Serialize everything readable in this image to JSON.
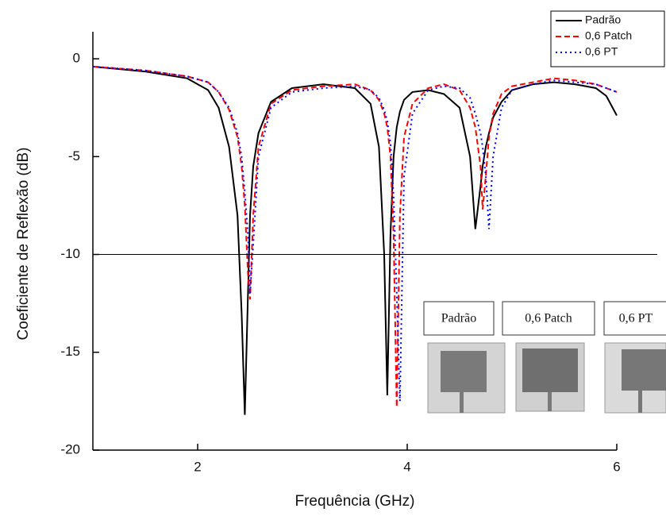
{
  "chart_data": {
    "type": "line",
    "x_label": "Frequência (GHz)",
    "y_label": "Coeficiente de Reflexão (dB)",
    "xlim": [
      1,
      6
    ],
    "ylim": [
      -20,
      1
    ],
    "xticks": [
      2,
      4,
      6
    ],
    "yticks": [
      0,
      -5,
      -10,
      -15,
      -20
    ],
    "reference_line": -10,
    "legend_position": "upper right",
    "x": [
      1.0,
      1.5,
      1.9,
      2.1,
      2.2,
      2.3,
      2.38,
      2.42,
      2.45,
      2.48,
      2.5,
      2.53,
      2.58,
      2.7,
      2.9,
      3.2,
      3.5,
      3.65,
      3.73,
      3.78,
      3.81,
      3.84,
      3.87,
      3.9,
      3.93,
      3.97,
      4.05,
      4.2,
      4.35,
      4.5,
      4.6,
      4.65,
      4.7,
      4.72,
      4.75,
      4.78,
      4.82,
      4.9,
      5.0,
      5.2,
      5.4,
      5.6,
      5.8,
      5.9,
      6.0
    ],
    "series": [
      {
        "name": "Padrão",
        "color": "#000000",
        "style": "solid",
        "values": [
          -0.4,
          -0.65,
          -1.0,
          -1.6,
          -2.5,
          -4.5,
          -8,
          -13,
          -18.2,
          -12,
          -8,
          -5.5,
          -3.8,
          -2.2,
          -1.5,
          -1.3,
          -1.5,
          -2.3,
          -4.5,
          -10,
          -17.2,
          -9,
          -5,
          -3.5,
          -2.7,
          -2.1,
          -1.7,
          -1.6,
          -1.8,
          -2.5,
          -5,
          -8.7,
          -6.5,
          -5.5,
          -4.5,
          -3.8,
          -3,
          -2.2,
          -1.6,
          -1.3,
          -1.2,
          -1.3,
          -1.5,
          -1.9,
          -2.9
        ]
      },
      {
        "name": "0,6 Patch",
        "color": "#ff0000",
        "style": "dashed",
        "values": [
          -0.4,
          -0.6,
          -0.9,
          -1.2,
          -1.7,
          -2.6,
          -4,
          -5.5,
          -7.5,
          -11,
          -12.3,
          -8,
          -4.5,
          -2.3,
          -1.6,
          -1.4,
          -1.3,
          -1.6,
          -2.1,
          -2.8,
          -3.5,
          -5,
          -9,
          -17.8,
          -8,
          -4,
          -2.3,
          -1.5,
          -1.3,
          -1.6,
          -2.5,
          -3.5,
          -5.5,
          -7.7,
          -6,
          -4,
          -2.8,
          -1.8,
          -1.4,
          -1.2,
          -1.0,
          -1.1,
          -1.3,
          -1.5,
          -1.7
        ]
      },
      {
        "name": "0,6 PT",
        "color": "#0000ff",
        "style": "dotted",
        "values": [
          -0.4,
          -0.6,
          -0.9,
          -1.2,
          -1.7,
          -2.5,
          -3.8,
          -5,
          -6.8,
          -9,
          -12,
          -9.5,
          -5,
          -2.5,
          -1.7,
          -1.5,
          -1.4,
          -1.6,
          -2.0,
          -2.6,
          -3.2,
          -4.3,
          -7,
          -12,
          -17.5,
          -6,
          -2.8,
          -1.6,
          -1.4,
          -1.5,
          -2.0,
          -2.8,
          -3.8,
          -4.5,
          -6,
          -8.7,
          -5,
          -2.5,
          -1.6,
          -1.3,
          -1.1,
          -1.2,
          -1.3,
          -1.5,
          -1.7
        ]
      }
    ],
    "inset_labels": [
      "Padrão",
      "0,6 Patch",
      "0,6 PT"
    ]
  }
}
